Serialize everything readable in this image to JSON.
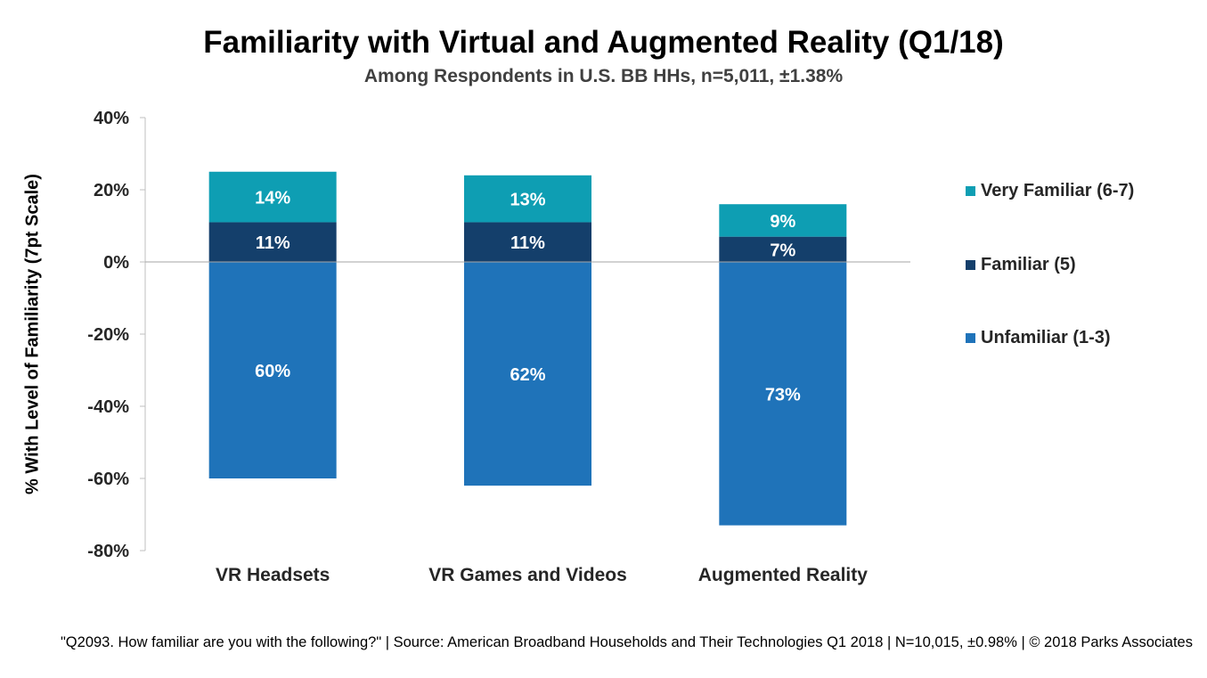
{
  "title": "Familiarity with Virtual and Augmented Reality (Q1/18)",
  "subtitle": "Among Respondents in U.S. BB HHs, n=5,011, ±1.38%",
  "source": "\"Q2093. How familiar are you with the following?\" | Source: American Broadband Households and Their Technologies Q1 2018 | N=10,015, ±0.98% | © 2018 Parks Associates",
  "colors": {
    "very_familiar": "#0E9EB3",
    "familiar": "#143F6B",
    "unfamiliar": "#1F73B9"
  },
  "chart_data": {
    "type": "bar",
    "stacked": true,
    "diverging": true,
    "title": "Familiarity with Virtual and Augmented Reality (Q1/18)",
    "subtitle": "Among Respondents in U.S. BB HHs, n=5,011, ±1.38%",
    "xlabel": "",
    "ylabel": "% With Level of Familiarity (7pt Scale)",
    "ylim": [
      -80,
      40
    ],
    "yticks": [
      40,
      20,
      0,
      -20,
      -40,
      -60,
      -80
    ],
    "ytick_labels": [
      "40%",
      "20%",
      "0%",
      "-20%",
      "-40%",
      "-60%",
      "-80%"
    ],
    "categories": [
      "VR Headsets",
      "VR Games and Videos",
      "Augmented Reality"
    ],
    "series": [
      {
        "name": "Unfamiliar (1-3)",
        "values": [
          -60,
          -62,
          -73
        ],
        "labels": [
          "60%",
          "62%",
          "73%"
        ]
      },
      {
        "name": "Familiar (5)",
        "values": [
          11,
          11,
          7
        ],
        "labels": [
          "11%",
          "11%",
          "7%"
        ]
      },
      {
        "name": "Very Familiar (6-7)",
        "values": [
          14,
          13,
          9
        ],
        "labels": [
          "14%",
          "13%",
          "9%"
        ]
      }
    ],
    "legend": {
      "position": "right",
      "entries": [
        "Very Familiar (6-7)",
        "Familiar (5)",
        "Unfamiliar (1-3)"
      ]
    },
    "grid": false
  }
}
